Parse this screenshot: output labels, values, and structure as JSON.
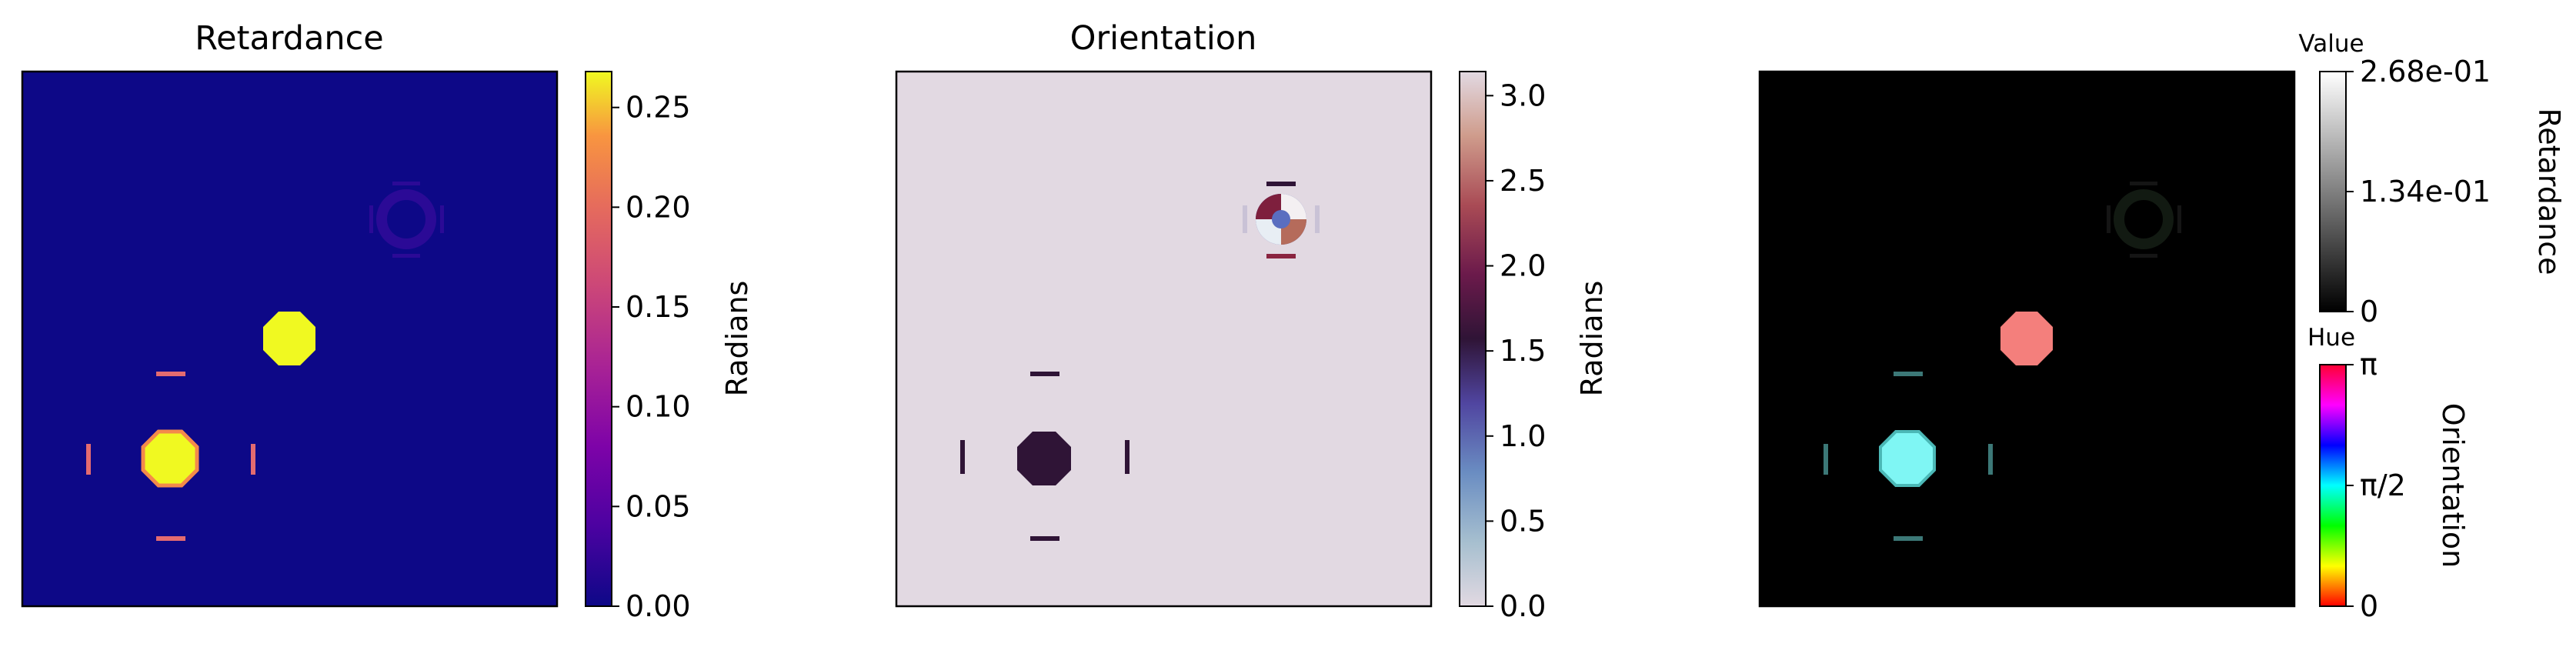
{
  "chart_data": [
    {
      "type": "heatmap",
      "title": "Retardance",
      "colormap": "plasma",
      "colorbar": {
        "label": "Radians",
        "range": [
          0,
          0.268
        ],
        "ticks": [
          "0.00",
          "0.05",
          "0.10",
          "0.15",
          "0.20",
          "0.25"
        ],
        "tick_values": [
          0,
          0.05,
          0.1,
          0.15,
          0.2,
          0.25
        ]
      },
      "background_value": 0.0,
      "features": [
        {
          "name": "solid-octagon",
          "value": 0.268
        },
        {
          "name": "center-octagon",
          "value": 0.268
        },
        {
          "name": "side-bars",
          "value": 0.17
        },
        {
          "name": "faint-ring",
          "value": 0.02
        }
      ]
    },
    {
      "type": "heatmap",
      "title": "Orientation",
      "colormap": "twilight",
      "colorbar": {
        "label": "Radians",
        "range": [
          0,
          3.1416
        ],
        "ticks": [
          "0.0",
          "0.5",
          "1.0",
          "1.5",
          "2.0",
          "2.5",
          "3.0"
        ],
        "tick_values": [
          0,
          0.5,
          1.0,
          1.5,
          2.0,
          2.5,
          3.0
        ]
      },
      "background_value": 0.0,
      "features": [
        {
          "name": "dark-octagon",
          "value": 1.57
        },
        {
          "name": "side-bars",
          "value": 1.57
        },
        {
          "name": "twisted-ring",
          "value": "0 to pi"
        }
      ]
    },
    {
      "type": "heatmap",
      "title": "",
      "colormap": "hsv-overlay",
      "value_colorbar": {
        "title": "Value",
        "label": "Retardance",
        "range": [
          0,
          0.268
        ],
        "ticks": [
          "0",
          "1.34e-01",
          "2.68e-01"
        ],
        "tick_values": [
          0,
          0.134,
          0.268
        ]
      },
      "hue_colorbar": {
        "title": "Hue",
        "label": "Orientation",
        "range": [
          0,
          3.1416
        ],
        "ticks": [
          "0",
          "π/2",
          "π"
        ],
        "tick_values": [
          0,
          1.5708,
          3.1416
        ]
      },
      "features": [
        {
          "name": "salmon-octagon",
          "hue": "red",
          "value": 0.268
        },
        {
          "name": "cyan-octagon",
          "hue": "cyan",
          "value": 0.268
        },
        {
          "name": "faint-ring",
          "value": 0.02
        }
      ]
    }
  ],
  "colors": {
    "plasma_min": "#0d0887",
    "plasma_max": "#f0f921",
    "twilight_bg": "#e2d9e2",
    "twilight_mid": "#2f1436",
    "overlay_bg": "#000000",
    "salmon": "#f47f7c",
    "cyan": "#7ff6f4",
    "side_bar_retardance": "#e36b70",
    "side_bar_overlay": "#3c7877"
  }
}
